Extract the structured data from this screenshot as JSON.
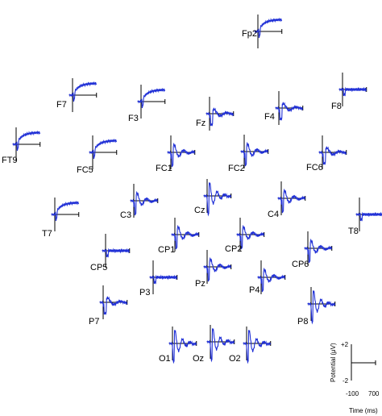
{
  "chart_data": {
    "type": "line",
    "description_of_layout": "topographic",
    "scale_bar": {
      "potential_label": "Potential (μV)",
      "time_label": "Time (ms)",
      "y_ticks": [
        "+2",
        "-2"
      ],
      "x_ticks": [
        "-100",
        "700"
      ],
      "ylim": [
        -2,
        2
      ],
      "xlim": [
        -100,
        700
      ]
    },
    "electrodes": [
      {
        "name": "Fp2",
        "pattern": "rise"
      },
      {
        "name": "F7",
        "pattern": "rise"
      },
      {
        "name": "F3",
        "pattern": "rise"
      },
      {
        "name": "Fz",
        "pattern": "mid"
      },
      {
        "name": "F4",
        "pattern": "mid"
      },
      {
        "name": "F8",
        "pattern": "flat"
      },
      {
        "name": "FT9",
        "pattern": "rise"
      },
      {
        "name": "FC5",
        "pattern": "rise"
      },
      {
        "name": "FC1",
        "pattern": "osc"
      },
      {
        "name": "FC2",
        "pattern": "osc"
      },
      {
        "name": "FC6",
        "pattern": "mid"
      },
      {
        "name": "C3",
        "pattern": "osc"
      },
      {
        "name": "Cz",
        "pattern": "strong"
      },
      {
        "name": "C4",
        "pattern": "osc"
      },
      {
        "name": "T7",
        "pattern": "rise"
      },
      {
        "name": "T8",
        "pattern": "flat"
      },
      {
        "name": "CP5",
        "pattern": "flat"
      },
      {
        "name": "CP1",
        "pattern": "osc"
      },
      {
        "name": "CP2",
        "pattern": "osc"
      },
      {
        "name": "CP6",
        "pattern": "osc"
      },
      {
        "name": "P3",
        "pattern": "flat"
      },
      {
        "name": "Pz",
        "pattern": "osc"
      },
      {
        "name": "P4",
        "pattern": "osc"
      },
      {
        "name": "P7",
        "pattern": "mid"
      },
      {
        "name": "P8",
        "pattern": "strong"
      },
      {
        "name": "O1",
        "pattern": "strong"
      },
      {
        "name": "Oz",
        "pattern": "strong"
      },
      {
        "name": "O2",
        "pattern": "strong"
      }
    ],
    "series_color": "#1f2fd6",
    "axis_color": "#000000"
  }
}
